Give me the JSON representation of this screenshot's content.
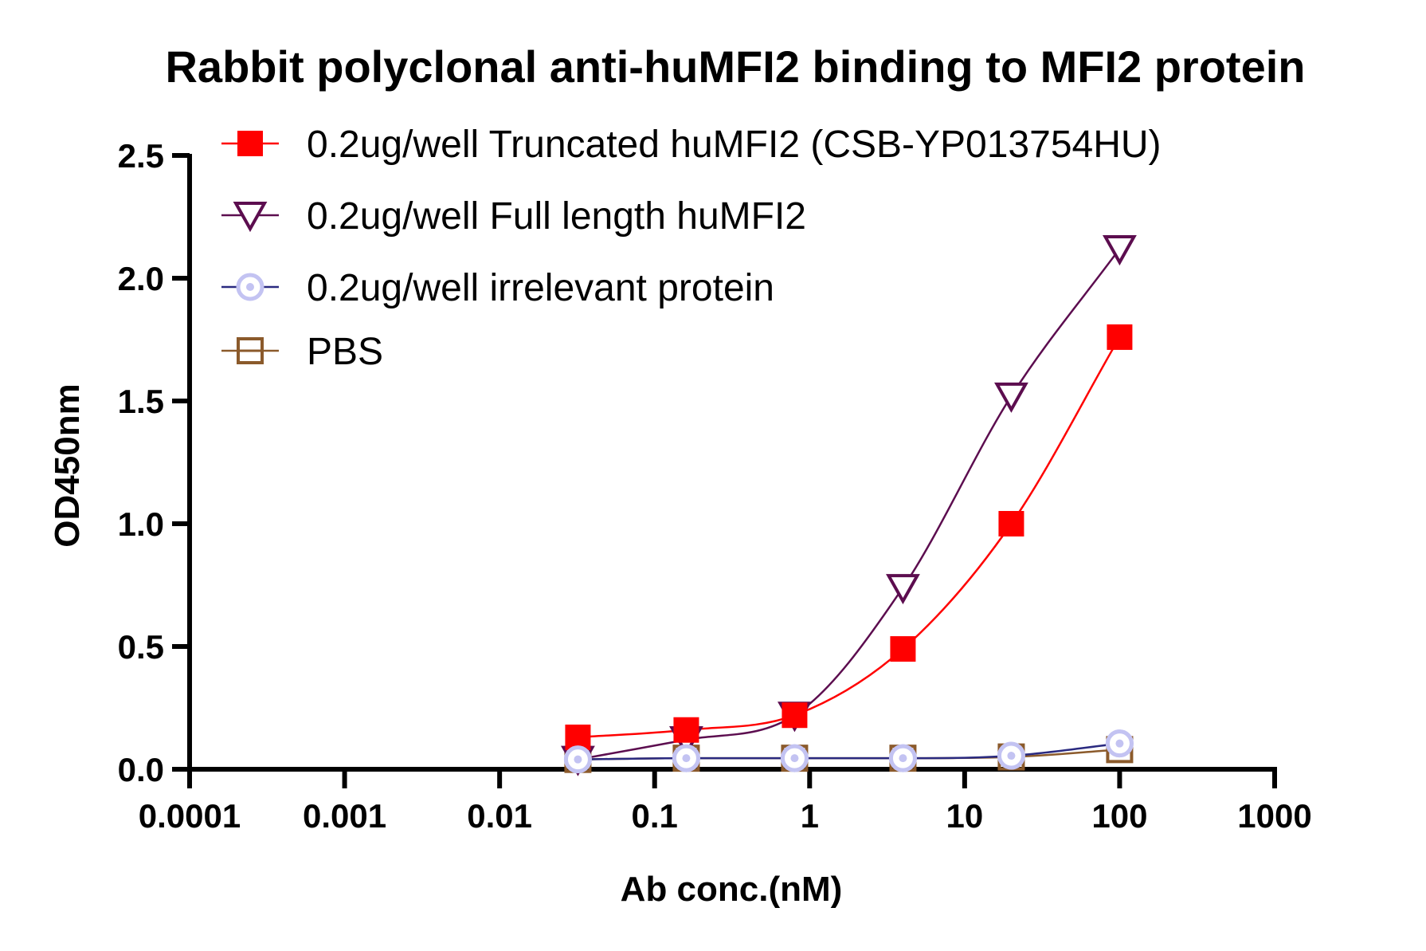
{
  "chart_data": {
    "type": "scatter",
    "title": "Rabbit polyclonal anti-huMFI2 binding to MFI2 protein",
    "xlabel": "Ab conc.(nM)",
    "ylabel": "OD450nm",
    "x_scale": "log",
    "xlim": [
      0.0001,
      1000
    ],
    "ylim": [
      0,
      2.5
    ],
    "x_ticks": [
      "0.0001",
      "0.001",
      "0.01",
      "0.1",
      "1",
      "10",
      "100",
      "1000"
    ],
    "y_ticks": [
      "0.0",
      "0.5",
      "1.0",
      "1.5",
      "2.0",
      "2.5"
    ],
    "grid": false,
    "legend_position": "top-left",
    "x": [
      0.032,
      0.16,
      0.8,
      4,
      20,
      100
    ],
    "series": [
      {
        "name": "0.2ug/well Truncated huMFI2 (CSB-YP013754HU)",
        "values": [
          0.13,
          0.16,
          0.22,
          0.49,
          1.0,
          1.76
        ],
        "color": "#ff0000",
        "marker": "filled-square"
      },
      {
        "name": "0.2ug/well Full length huMFI2",
        "values": [
          0.04,
          0.12,
          0.22,
          0.74,
          1.52,
          2.12
        ],
        "color": "#5c0d4f",
        "marker": "open-triangle-down"
      },
      {
        "name": "0.2ug/well irrelevant protein",
        "values": [
          0.04,
          0.045,
          0.045,
          0.045,
          0.055,
          0.105
        ],
        "color": "#2a2a80",
        "marker": "open-circle-dot",
        "marker_color": "#c3c3f2"
      },
      {
        "name": "PBS",
        "values": [
          0.04,
          0.045,
          0.045,
          0.045,
          0.05,
          0.08
        ],
        "color": "#8b5a2b",
        "marker": "open-square"
      }
    ]
  }
}
